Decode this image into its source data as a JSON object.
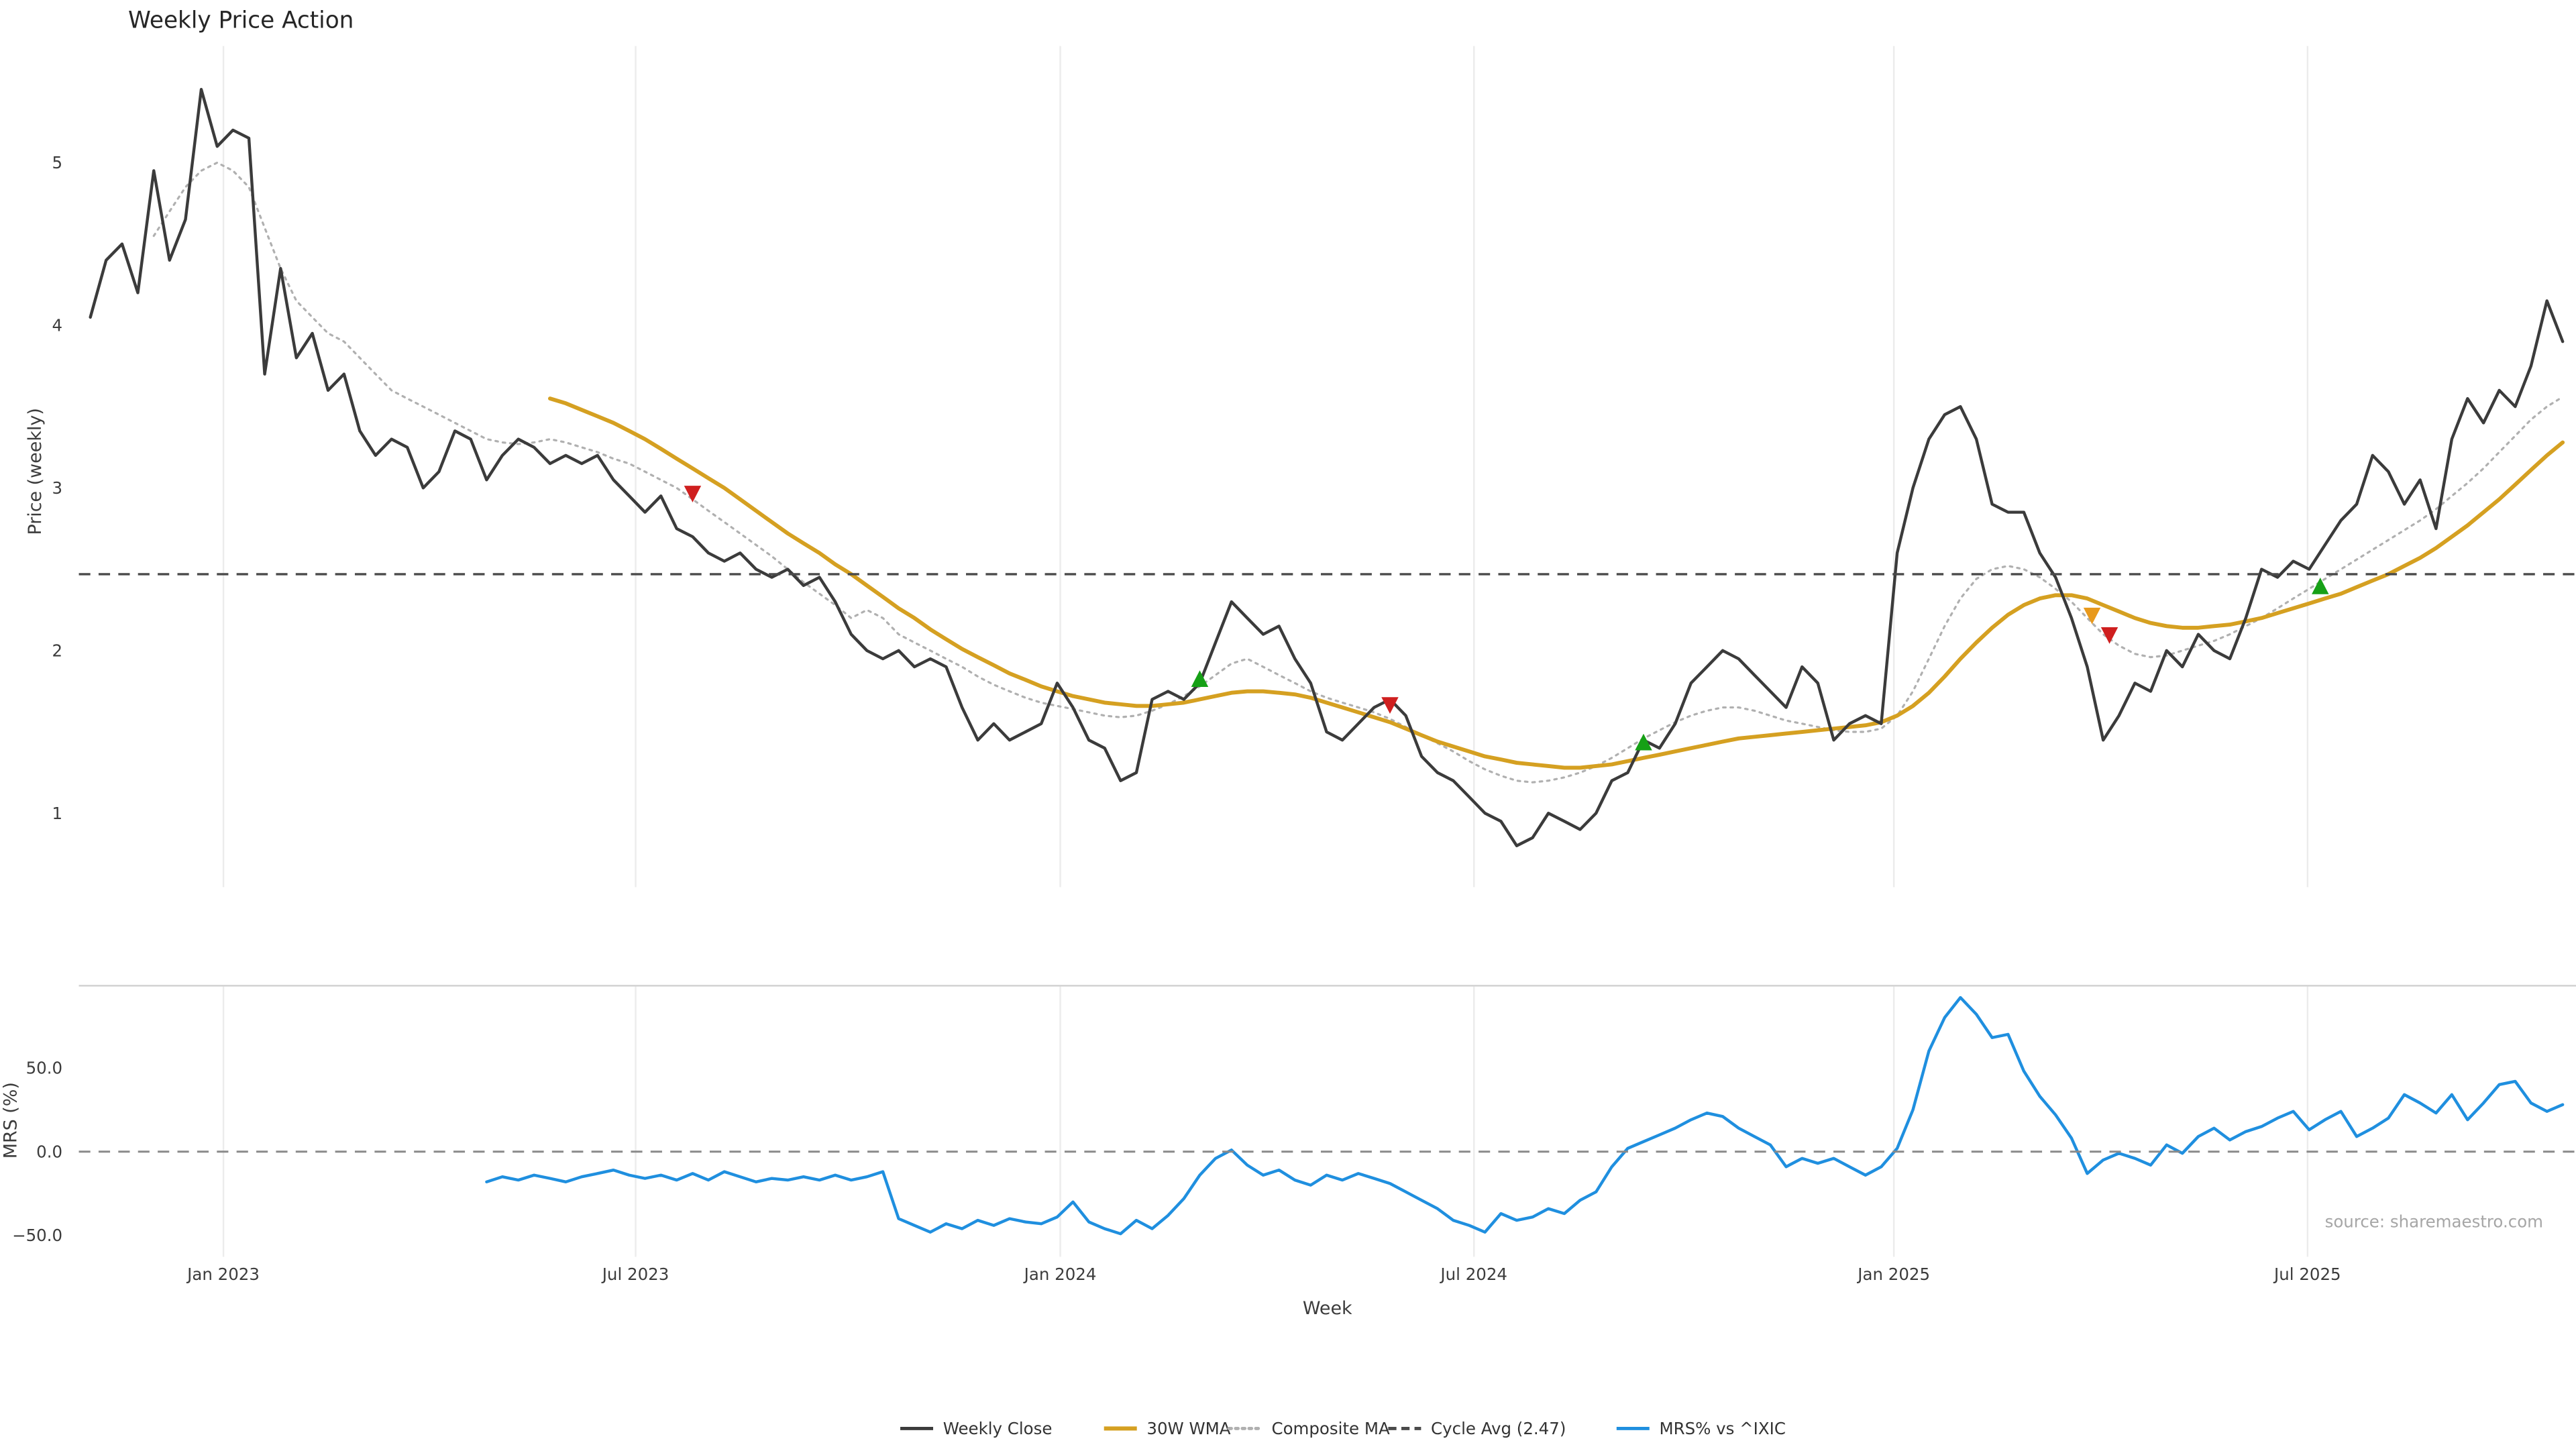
{
  "title": "Weekly Price Action",
  "xlabel": "Week",
  "price_panel": {
    "ylabel": "Price (weekly)"
  },
  "mrs_panel": {
    "ylabel": "MRS (%)",
    "source": "source: sharemaestro.com"
  },
  "legend": [
    {
      "label": "Weekly Close",
      "color": "#3b3b3b",
      "style": "solid"
    },
    {
      "label": "30W WMA",
      "color": "#d5a021",
      "style": "solid"
    },
    {
      "label": "Composite MA",
      "color": "#b0b0b0",
      "style": "dotted"
    },
    {
      "label": "Cycle Avg (2.47)",
      "color": "#4a4a4a",
      "style": "dashed"
    },
    {
      "label": "MRS% vs ^IXIC",
      "color": "#1f8fdf",
      "style": "solid"
    }
  ],
  "chart_data": {
    "type": "line",
    "title": "Weekly Price Action",
    "x_unit": "week_index",
    "price_ylim": [
      0.55,
      5.7
    ],
    "mrs_ylim": [
      -65,
      100
    ],
    "cycle_avg": 2.47,
    "grid": "vertical-only",
    "legend_position": "bottom-center",
    "price_yticks": [
      {
        "label": "1",
        "value": 1
      },
      {
        "label": "2",
        "value": 2
      },
      {
        "label": "3",
        "value": 3
      },
      {
        "label": "4",
        "value": 4
      },
      {
        "label": "5",
        "value": 5
      }
    ],
    "mrs_yticks": [
      {
        "label": "−50.0",
        "value": -50
      },
      {
        "label": "0.0",
        "value": 0
      },
      {
        "label": "50.0",
        "value": 50
      }
    ],
    "xticks": [
      {
        "label": "Jan 2023",
        "week": 8.4
      },
      {
        "label": "Jul 2023",
        "week": 34.4
      },
      {
        "label": "Jan 2024",
        "week": 61.2
      },
      {
        "label": "Jul 2024",
        "week": 87.3
      },
      {
        "label": "Jan 2025",
        "week": 113.8
      },
      {
        "label": "Jul 2025",
        "week": 139.9
      }
    ],
    "signal_colors": {
      "buy": "#16a016",
      "sell": "#cf1f1f",
      "caution": "#e8991c"
    },
    "markers": [
      {
        "type": "sell",
        "week": 38,
        "value": 2.97
      },
      {
        "type": "buy",
        "week": 70,
        "value": 1.82
      },
      {
        "type": "sell",
        "week": 82,
        "value": 1.67
      },
      {
        "type": "buy",
        "week": 98,
        "value": 1.43
      },
      {
        "type": "caution",
        "week": 126.3,
        "value": 2.22
      },
      {
        "type": "sell",
        "week": 127.4,
        "value": 2.1
      },
      {
        "type": "buy",
        "week": 140.7,
        "value": 2.39
      }
    ],
    "series": [
      {
        "id": "close",
        "name": "Weekly Close",
        "panel": "price",
        "color": "#3b3b3b",
        "start_week": 0,
        "values": [
          4.05,
          4.4,
          4.5,
          4.2,
          4.95,
          4.4,
          4.65,
          5.45,
          5.1,
          5.2,
          5.15,
          3.7,
          4.35,
          3.8,
          3.95,
          3.6,
          3.7,
          3.35,
          3.2,
          3.3,
          3.25,
          3.0,
          3.1,
          3.35,
          3.3,
          3.05,
          3.2,
          3.3,
          3.25,
          3.15,
          3.2,
          3.15,
          3.2,
          3.05,
          2.95,
          2.85,
          2.95,
          2.75,
          2.7,
          2.6,
          2.55,
          2.6,
          2.5,
          2.45,
          2.5,
          2.4,
          2.45,
          2.3,
          2.1,
          2.0,
          1.95,
          2.0,
          1.9,
          1.95,
          1.9,
          1.65,
          1.45,
          1.55,
          1.45,
          1.5,
          1.55,
          1.8,
          1.65,
          1.45,
          1.4,
          1.2,
          1.25,
          1.7,
          1.75,
          1.7,
          1.8,
          2.05,
          2.3,
          2.2,
          2.1,
          2.15,
          1.95,
          1.8,
          1.5,
          1.45,
          1.55,
          1.65,
          1.7,
          1.6,
          1.35,
          1.25,
          1.2,
          1.1,
          1.0,
          0.95,
          0.8,
          0.85,
          1.0,
          0.95,
          0.9,
          1.0,
          1.2,
          1.25,
          1.45,
          1.4,
          1.55,
          1.8,
          1.9,
          2.0,
          1.95,
          1.85,
          1.75,
          1.65,
          1.9,
          1.8,
          1.45,
          1.55,
          1.6,
          1.55,
          2.6,
          3.0,
          3.3,
          3.45,
          3.5,
          3.3,
          2.9,
          2.85,
          2.85,
          2.6,
          2.45,
          2.2,
          1.9,
          1.45,
          1.6,
          1.8,
          1.75,
          2.0,
          1.9,
          2.1,
          2.0,
          1.95,
          2.2,
          2.5,
          2.45,
          2.55,
          2.5,
          2.65,
          2.8,
          2.9,
          3.2,
          3.1,
          2.9,
          3.05,
          2.75,
          3.3,
          3.55,
          3.4,
          3.6,
          3.5,
          3.75,
          4.15,
          3.9
        ]
      },
      {
        "id": "wma",
        "name": "30W WMA",
        "panel": "price",
        "color": "#d5a021",
        "start_week": 29,
        "values": [
          3.55,
          3.52,
          3.48,
          3.44,
          3.4,
          3.35,
          3.3,
          3.24,
          3.18,
          3.12,
          3.06,
          3.0,
          2.93,
          2.86,
          2.79,
          2.72,
          2.66,
          2.6,
          2.53,
          2.47,
          2.4,
          2.33,
          2.26,
          2.2,
          2.13,
          2.07,
          2.01,
          1.96,
          1.91,
          1.86,
          1.82,
          1.78,
          1.75,
          1.72,
          1.7,
          1.68,
          1.67,
          1.66,
          1.66,
          1.67,
          1.68,
          1.7,
          1.72,
          1.74,
          1.75,
          1.75,
          1.74,
          1.73,
          1.71,
          1.68,
          1.65,
          1.62,
          1.59,
          1.56,
          1.52,
          1.48,
          1.44,
          1.41,
          1.38,
          1.35,
          1.33,
          1.31,
          1.3,
          1.29,
          1.28,
          1.28,
          1.29,
          1.3,
          1.32,
          1.34,
          1.36,
          1.38,
          1.4,
          1.42,
          1.44,
          1.46,
          1.47,
          1.48,
          1.49,
          1.5,
          1.51,
          1.52,
          1.53,
          1.54,
          1.56,
          1.6,
          1.66,
          1.74,
          1.84,
          1.95,
          2.05,
          2.14,
          2.22,
          2.28,
          2.32,
          2.34,
          2.34,
          2.32,
          2.28,
          2.24,
          2.2,
          2.17,
          2.15,
          2.14,
          2.14,
          2.15,
          2.16,
          2.18,
          2.2,
          2.23,
          2.26,
          2.29,
          2.32,
          2.35,
          2.39,
          2.43,
          2.47,
          2.52,
          2.57,
          2.63,
          2.7,
          2.77,
          2.85,
          2.93,
          3.02,
          3.11,
          3.2,
          3.28
        ]
      },
      {
        "id": "composite",
        "name": "Composite MA",
        "panel": "price",
        "color": "#b0b0b0",
        "start_week": 4,
        "values": [
          4.55,
          4.7,
          4.85,
          4.95,
          5.0,
          4.95,
          4.85,
          4.6,
          4.35,
          4.15,
          4.05,
          3.95,
          3.9,
          3.8,
          3.7,
          3.6,
          3.55,
          3.5,
          3.45,
          3.4,
          3.35,
          3.3,
          3.28,
          3.27,
          3.28,
          3.3,
          3.28,
          3.25,
          3.22,
          3.18,
          3.15,
          3.1,
          3.05,
          3.0,
          2.93,
          2.86,
          2.79,
          2.72,
          2.65,
          2.58,
          2.5,
          2.42,
          2.35,
          2.28,
          2.2,
          2.25,
          2.2,
          2.1,
          2.05,
          2.0,
          1.95,
          1.9,
          1.84,
          1.79,
          1.75,
          1.71,
          1.68,
          1.66,
          1.64,
          1.62,
          1.6,
          1.59,
          1.6,
          1.63,
          1.67,
          1.72,
          1.78,
          1.85,
          1.92,
          1.95,
          1.9,
          1.85,
          1.8,
          1.75,
          1.71,
          1.68,
          1.65,
          1.62,
          1.58,
          1.53,
          1.48,
          1.43,
          1.38,
          1.32,
          1.27,
          1.23,
          1.2,
          1.19,
          1.2,
          1.22,
          1.25,
          1.29,
          1.34,
          1.4,
          1.46,
          1.51,
          1.56,
          1.6,
          1.63,
          1.65,
          1.65,
          1.63,
          1.6,
          1.57,
          1.55,
          1.53,
          1.51,
          1.5,
          1.5,
          1.52,
          1.6,
          1.75,
          1.95,
          2.15,
          2.32,
          2.44,
          2.5,
          2.52,
          2.5,
          2.45,
          2.38,
          2.3,
          2.2,
          2.1,
          2.03,
          1.98,
          1.96,
          1.97,
          2.0,
          2.03,
          2.06,
          2.1,
          2.15,
          2.2,
          2.26,
          2.32,
          2.38,
          2.44,
          2.5,
          2.56,
          2.62,
          2.68,
          2.74,
          2.8,
          2.87,
          2.95,
          3.03,
          3.12,
          3.22,
          3.32,
          3.42,
          3.5,
          3.56
        ]
      },
      {
        "id": "mrs",
        "name": "MRS% vs ^IXIC",
        "panel": "mrs",
        "color": "#1f8fdf",
        "start_week": 25,
        "values": [
          -18,
          -15,
          -17,
          -14,
          -16,
          -18,
          -15,
          -13,
          -11,
          -14,
          -16,
          -14,
          -17,
          -13,
          -17,
          -12,
          -15,
          -18,
          -16,
          -17,
          -15,
          -17,
          -14,
          -17,
          -15,
          -12,
          -40,
          -44,
          -48,
          -43,
          -46,
          -41,
          -44,
          -40,
          -42,
          -43,
          -39,
          -30,
          -42,
          -46,
          -49,
          -41,
          -46,
          -38,
          -28,
          -14,
          -4,
          1,
          -8,
          -14,
          -11,
          -17,
          -20,
          -14,
          -17,
          -13,
          -16,
          -19,
          -24,
          -29,
          -34,
          -41,
          -44,
          -48,
          -37,
          -41,
          -39,
          -34,
          -37,
          -29,
          -24,
          -9,
          2,
          6,
          10,
          14,
          19,
          23,
          21,
          14,
          9,
          4,
          -9,
          -4,
          -7,
          -4,
          -9,
          -14,
          -9,
          2,
          25,
          60,
          80,
          92,
          82,
          68,
          70,
          48,
          33,
          22,
          8,
          -13,
          -5,
          -1,
          -4,
          -8,
          4,
          -1,
          9,
          14,
          7,
          12,
          15,
          20,
          24,
          13,
          19,
          24,
          9,
          14,
          20,
          34,
          29,
          23,
          34,
          19,
          29,
          40,
          42,
          29,
          24,
          28
        ]
      }
    ]
  }
}
